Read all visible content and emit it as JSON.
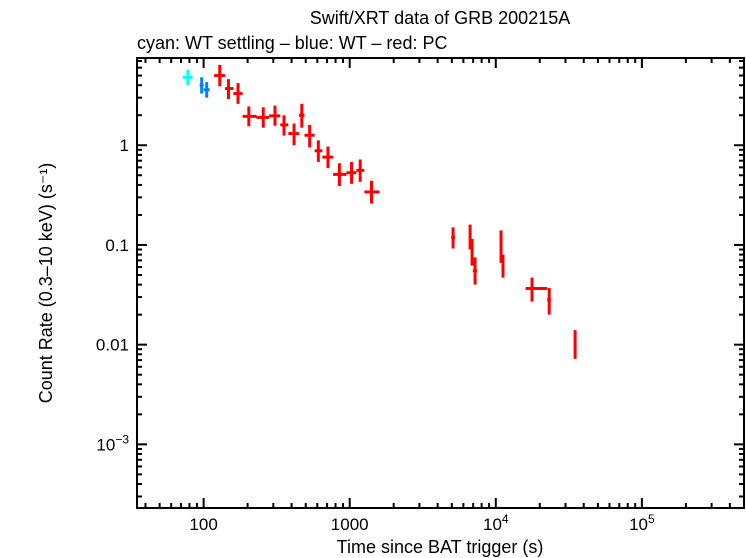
{
  "chart_data": {
    "type": "scatter",
    "title": "Swift/XRT data of GRB 200215A",
    "subtitle": "cyan: WT settling – blue: WT – red: PC",
    "xlabel": "Time since BAT trigger (s)",
    "ylabel": "Count Rate (0.3–10 keV) (s⁻¹)",
    "xscale": "log",
    "yscale": "log",
    "xlim": [
      35,
      500000
    ],
    "ylim": [
      0.00023,
      7.5
    ],
    "grid": false,
    "x_ticks": [
      {
        "v": 100,
        "label": "100"
      },
      {
        "v": 1000,
        "label": "1000"
      },
      {
        "v": 10000,
        "base": "10",
        "exp": "4"
      },
      {
        "v": 100000,
        "base": "10",
        "exp": "5"
      }
    ],
    "y_ticks": [
      {
        "v": 1,
        "label": "1"
      },
      {
        "v": 0.1,
        "label": "0.1"
      },
      {
        "v": 0.01,
        "label": "0.01"
      },
      {
        "v": 0.001,
        "base": "10",
        "exp": "−3"
      }
    ],
    "series": [
      {
        "mode": "WT settling",
        "color": "#00ffff",
        "points": [
          {
            "t": 78,
            "t_lo": 72,
            "t_hi": 84,
            "rate": 4.8,
            "rate_lo": 4.0,
            "rate_hi": 5.7
          }
        ]
      },
      {
        "mode": "WT",
        "color": "#0080ff",
        "points": [
          {
            "t": 97,
            "t_lo": 94,
            "t_hi": 100,
            "rate": 4.0,
            "rate_lo": 3.3,
            "rate_hi": 4.8
          },
          {
            "t": 105,
            "t_lo": 100,
            "t_hi": 110,
            "rate": 3.6,
            "rate_lo": 3.0,
            "rate_hi": 4.3
          }
        ]
      },
      {
        "mode": "PC",
        "color": "#ff0000",
        "points": [
          {
            "t": 129,
            "t_lo": 118,
            "t_hi": 140,
            "rate": 5.0,
            "rate_lo": 3.9,
            "rate_hi": 6.4
          },
          {
            "t": 148,
            "t_lo": 140,
            "t_hi": 160,
            "rate": 3.7,
            "rate_lo": 2.9,
            "rate_hi": 4.6
          },
          {
            "t": 172,
            "t_lo": 160,
            "t_hi": 185,
            "rate": 3.3,
            "rate_lo": 2.6,
            "rate_hi": 4.2
          },
          {
            "t": 204,
            "t_lo": 185,
            "t_hi": 230,
            "rate": 1.95,
            "rate_lo": 1.55,
            "rate_hi": 2.45
          },
          {
            "t": 256,
            "t_lo": 230,
            "t_hi": 280,
            "rate": 1.9,
            "rate_lo": 1.5,
            "rate_hi": 2.4
          },
          {
            "t": 308,
            "t_lo": 280,
            "t_hi": 335,
            "rate": 1.97,
            "rate_lo": 1.57,
            "rate_hi": 2.5
          },
          {
            "t": 355,
            "t_lo": 335,
            "t_hi": 380,
            "rate": 1.6,
            "rate_lo": 1.25,
            "rate_hi": 2.0
          },
          {
            "t": 416,
            "t_lo": 380,
            "t_hi": 450,
            "rate": 1.31,
            "rate_lo": 1.0,
            "rate_hi": 1.65
          },
          {
            "t": 470,
            "t_lo": 450,
            "t_hi": 490,
            "rate": 2.0,
            "rate_lo": 1.5,
            "rate_hi": 2.6
          },
          {
            "t": 532,
            "t_lo": 490,
            "t_hi": 575,
            "rate": 1.26,
            "rate_lo": 0.95,
            "rate_hi": 1.6
          },
          {
            "t": 610,
            "t_lo": 575,
            "t_hi": 650,
            "rate": 0.88,
            "rate_lo": 0.68,
            "rate_hi": 1.12
          },
          {
            "t": 710,
            "t_lo": 650,
            "t_hi": 770,
            "rate": 0.76,
            "rate_lo": 0.59,
            "rate_hi": 0.97
          },
          {
            "t": 850,
            "t_lo": 770,
            "t_hi": 950,
            "rate": 0.51,
            "rate_lo": 0.39,
            "rate_hi": 0.66
          },
          {
            "t": 1030,
            "t_lo": 950,
            "t_hi": 1110,
            "rate": 0.53,
            "rate_lo": 0.41,
            "rate_hi": 0.68
          },
          {
            "t": 1180,
            "t_lo": 1110,
            "t_hi": 1260,
            "rate": 0.56,
            "rate_lo": 0.43,
            "rate_hi": 0.72
          },
          {
            "t": 1410,
            "t_lo": 1260,
            "t_hi": 1600,
            "rate": 0.34,
            "rate_lo": 0.26,
            "rate_hi": 0.44
          },
          {
            "t": 5100,
            "t_lo": 4950,
            "t_hi": 5250,
            "rate": 0.119,
            "rate_lo": 0.092,
            "rate_hi": 0.15
          },
          {
            "t": 6670,
            "t_lo": 6550,
            "t_hi": 6800,
            "rate": 0.127,
            "rate_lo": 0.09,
            "rate_hi": 0.16
          },
          {
            "t": 6880,
            "t_lo": 6800,
            "t_hi": 6960,
            "rate": 0.086,
            "rate_lo": 0.062,
            "rate_hi": 0.115
          },
          {
            "t": 7210,
            "t_lo": 6960,
            "t_hi": 7450,
            "rate": 0.055,
            "rate_lo": 0.04,
            "rate_hi": 0.075
          },
          {
            "t": 10860,
            "t_lo": 10750,
            "t_hi": 10980,
            "rate": 0.1,
            "rate_lo": 0.066,
            "rate_hi": 0.14
          },
          {
            "t": 11200,
            "t_lo": 10980,
            "t_hi": 11400,
            "rate": 0.061,
            "rate_lo": 0.047,
            "rate_hi": 0.08
          },
          {
            "t": 17700,
            "t_lo": 16000,
            "t_hi": 22500,
            "rate": 0.0366,
            "rate_lo": 0.027,
            "rate_hi": 0.047
          },
          {
            "t": 23200,
            "t_lo": 22500,
            "t_hi": 23800,
            "rate": 0.0283,
            "rate_lo": 0.02,
            "rate_hi": 0.037
          },
          {
            "t": 34900,
            "t_lo": 34500,
            "t_hi": 35300,
            "rate": 0.0103,
            "rate_lo": 0.0072,
            "rate_hi": 0.014
          }
        ]
      }
    ]
  }
}
